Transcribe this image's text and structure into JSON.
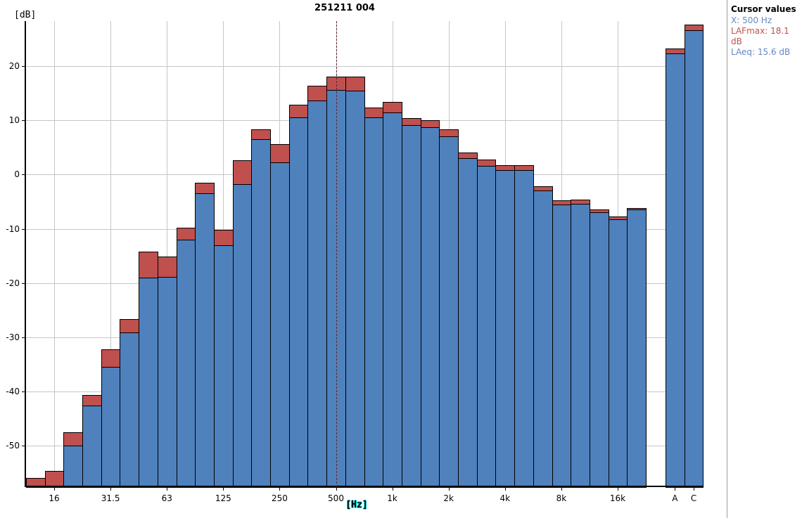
{
  "window": {
    "title": "251211 004"
  },
  "cursor_panel": {
    "heading": "Cursor values",
    "x_line": "X: 500 Hz",
    "lafmax_line": "LAFmax: 18.1 dB",
    "laeq_line": "LAeq: 15.6 dB",
    "x_color": "#6288c4",
    "lafmax_color": "#c0504d",
    "laeq_color": "#6288c4"
  },
  "colors": {
    "laeq_bar": "#4f81bd",
    "lafmax_bar": "#bf504d",
    "bar_border": "#000000",
    "gridline": "#c6c6c6",
    "cursor_line": "#63282b",
    "hz_label_highlight": "#00d8d8"
  },
  "chart_data": {
    "type": "bar",
    "title": "251211 004",
    "ylabel": "[dB]",
    "xlabel": "[Hz]",
    "ylim": [
      -57.6,
      28.3
    ],
    "yticks": [
      20,
      10,
      0,
      -10,
      -20,
      -30,
      -40,
      -50
    ],
    "grid": true,
    "legend_position": "none",
    "categories": [
      "12.5",
      "16",
      "20",
      "25",
      "31.5",
      "40",
      "50",
      "63",
      "80",
      "100",
      "125",
      "160",
      "200",
      "250",
      "315",
      "400",
      "500",
      "630",
      "800",
      "1k",
      "1.25k",
      "1.6k",
      "2k",
      "2.5k",
      "3.15k",
      "4k",
      "5k",
      "6.3k",
      "8k",
      "10k",
      "12.5k",
      "16k",
      "20k"
    ],
    "series": [
      {
        "name": "LAFmax",
        "color": "#bf504d",
        "values": [
          -55.9,
          -54.6,
          -47.5,
          -40.6,
          -32.2,
          -26.6,
          -14.2,
          -15.1,
          -9.8,
          -1.5,
          -10.2,
          2.6,
          8.4,
          5.6,
          12.9,
          16.4,
          18.1,
          18.0,
          12.3,
          13.4,
          10.4,
          10.0,
          8.4,
          4.1,
          2.8,
          1.8,
          1.8,
          -2.2,
          -4.7,
          -4.6,
          -6.4,
          -7.7,
          -6.1
        ]
      },
      {
        "name": "LAeq",
        "color": "#4f81bd",
        "values": [
          -57.6,
          -57.6,
          -49.9,
          -42.6,
          -35.4,
          -29.1,
          -19.0,
          -18.8,
          -12.0,
          -3.4,
          -13.0,
          -1.7,
          6.5,
          2.2,
          10.6,
          13.6,
          15.6,
          15.5,
          10.5,
          11.4,
          9.1,
          8.7,
          7.0,
          3.0,
          1.6,
          0.8,
          0.8,
          -2.9,
          -5.5,
          -5.4,
          -7.0,
          -8.3,
          -6.4
        ]
      }
    ],
    "overall_bars": [
      {
        "label": "A",
        "lafmax": 23.2,
        "laeq": 22.3
      },
      {
        "label": "C",
        "lafmax": 27.6,
        "laeq": 26.6
      }
    ],
    "xtick_labels": [
      "16",
      "31.5",
      "63",
      "125",
      "250",
      "500",
      "1k",
      "2k",
      "4k",
      "8k",
      "16k"
    ],
    "xtick_band_indices": [
      1,
      4,
      7,
      10,
      13,
      16,
      19,
      22,
      25,
      28,
      31
    ],
    "cursor": {
      "band": "500",
      "band_index": 16,
      "lafmax_db": 18.1,
      "laeq_db": 15.6
    }
  }
}
